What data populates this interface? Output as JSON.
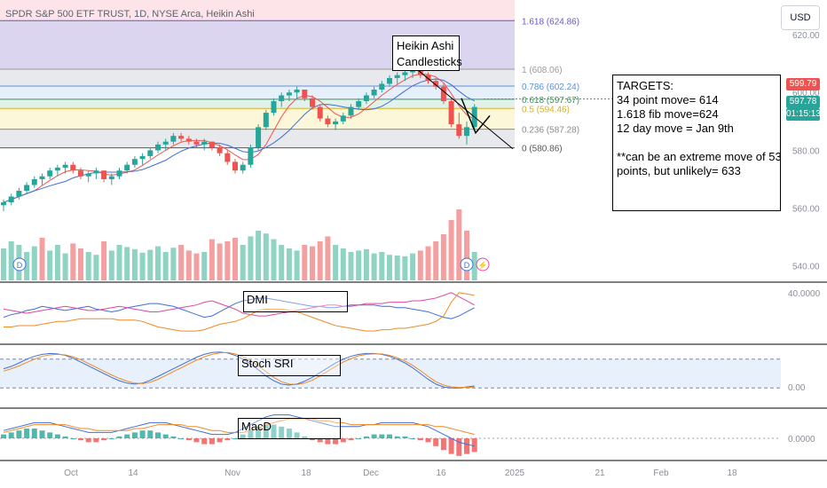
{
  "header": {
    "symbol_title": "SPDR S&P 500 ETF TRUST, 1D, NYSE Arca, Heikin Ashi",
    "currency_button": "USD"
  },
  "annotations": {
    "heikin_ashi_box": [
      "Heikin Ashi",
      "Candlesticks"
    ],
    "targets_box": [
      "TARGETS:",
      "",
      "34 point move= 614",
      "1.618 fib move=624",
      "12 day move = Jan 9th",
      "",
      "**can be an extreme move of 53",
      "points, but unlikely= 633"
    ],
    "dmi_box": "DMI",
    "stoch_box": "Stoch SRI",
    "macd_box": "MacD"
  },
  "price_tags": {
    "last_red": "599.79",
    "current": "597.78",
    "countdown": "01:15:13"
  },
  "colors": {
    "up": "#26a69a",
    "down": "#ef5350",
    "vol_up": "#8fd3c3",
    "vol_down": "#f5a0a0",
    "fib_1618_zone": "#dcd5f0",
    "fib_top_zone": "#fde4e9",
    "fib_grey_zone": "#e8e9ed",
    "fib_yellow_zone": "#fbf7d8",
    "fib_green_zone": "#e2f2ea",
    "dmi_plus": "#3f6fd8",
    "dmi_minus": "#e0479e",
    "adx": "#f08a24",
    "stoch_k": "#3f6fd8",
    "stoch_d": "#f08a24"
  },
  "chart_data": [
    {
      "type": "candlestick",
      "title": "SPDR S&P 500 ETF TRUST, 1D, NYSE Arca, Heikin Ashi",
      "x_ticks": [
        "Oct",
        "14",
        "Nov",
        "18",
        "Dec",
        "16",
        "2025",
        "21",
        "Feb",
        "18"
      ],
      "y_ticks": [
        "620.00",
        "600.00",
        "580.00",
        "560.00",
        "540.00"
      ],
      "ylim": [
        535,
        632
      ],
      "fib_levels": [
        {
          "label": "1.618 (624.86)",
          "value": 624.86
        },
        {
          "label": "1 (608.06)",
          "value": 608.06
        },
        {
          "label": "0.786 (602.24)",
          "value": 602.24
        },
        {
          "label": "0.618 (597.67)",
          "value": 597.67
        },
        {
          "label": "0.5 (594.46)",
          "value": 594.46
        },
        {
          "label": "0.236 (587.28)",
          "value": 587.28
        },
        {
          "label": "0 (580.86)",
          "value": 580.86
        }
      ],
      "candles": [
        [
          561,
          563,
          559,
          562
        ],
        [
          562,
          565,
          561,
          564
        ],
        [
          564,
          567,
          563,
          566
        ],
        [
          566,
          569,
          565,
          568
        ],
        [
          568,
          571,
          567,
          570
        ],
        [
          570,
          572,
          568,
          571
        ],
        [
          571,
          574,
          570,
          573
        ],
        [
          573,
          575,
          571,
          574
        ],
        [
          574,
          576,
          572,
          575
        ],
        [
          575,
          576,
          572,
          573
        ],
        [
          573,
          574,
          570,
          571
        ],
        [
          571,
          573,
          569,
          572
        ],
        [
          572,
          574,
          570,
          573
        ],
        [
          573,
          573,
          569,
          570
        ],
        [
          570,
          572,
          568,
          571
        ],
        [
          571,
          574,
          570,
          573
        ],
        [
          573,
          576,
          572,
          575
        ],
        [
          575,
          578,
          574,
          577
        ],
        [
          577,
          579,
          575,
          578
        ],
        [
          578,
          581,
          577,
          580
        ],
        [
          580,
          583,
          579,
          582
        ],
        [
          582,
          584,
          580,
          583
        ],
        [
          583,
          586,
          582,
          585
        ],
        [
          585,
          586,
          583,
          584
        ],
        [
          584,
          585,
          582,
          583
        ],
        [
          583,
          584,
          581,
          582
        ],
        [
          582,
          584,
          580,
          583
        ],
        [
          583,
          583,
          580,
          581
        ],
        [
          581,
          582,
          578,
          579
        ],
        [
          579,
          580,
          575,
          576
        ],
        [
          576,
          577,
          572,
          573
        ],
        [
          573,
          576,
          572,
          575
        ],
        [
          575,
          582,
          574,
          581
        ],
        [
          581,
          589,
          580,
          588
        ],
        [
          588,
          594,
          587,
          593
        ],
        [
          593,
          598,
          592,
          597
        ],
        [
          597,
          600,
          595,
          599
        ],
        [
          599,
          601,
          597,
          600
        ],
        [
          600,
          602,
          598,
          601
        ],
        [
          601,
          601,
          597,
          598
        ],
        [
          598,
          599,
          594,
          595
        ],
        [
          595,
          596,
          590,
          591
        ],
        [
          591,
          592,
          588,
          589
        ],
        [
          589,
          591,
          587,
          590
        ],
        [
          590,
          593,
          589,
          592
        ],
        [
          592,
          596,
          591,
          595
        ],
        [
          595,
          598,
          594,
          597
        ],
        [
          597,
          600,
          596,
          599
        ],
        [
          599,
          602,
          598,
          601
        ],
        [
          601,
          604,
          600,
          603
        ],
        [
          603,
          606,
          602,
          605
        ],
        [
          605,
          607,
          603,
          606
        ],
        [
          606,
          608,
          604,
          607
        ],
        [
          607,
          609,
          605,
          608
        ],
        [
          608,
          609,
          605,
          606
        ],
        [
          606,
          607,
          603,
          604
        ],
        [
          604,
          605,
          601,
          602
        ],
        [
          602,
          603,
          596,
          597
        ],
        [
          597,
          598,
          588,
          589
        ],
        [
          589,
          593,
          584,
          585
        ],
        [
          585,
          590,
          582,
          588
        ],
        [
          588,
          596,
          587,
          595
        ]
      ],
      "volume": [
        [
          0.45,
          "up"
        ],
        [
          0.55,
          "up"
        ],
        [
          0.5,
          "up"
        ],
        [
          0.4,
          "up"
        ],
        [
          0.48,
          "up"
        ],
        [
          0.6,
          "down"
        ],
        [
          0.42,
          "up"
        ],
        [
          0.5,
          "up"
        ],
        [
          0.38,
          "up"
        ],
        [
          0.52,
          "down"
        ],
        [
          0.45,
          "down"
        ],
        [
          0.4,
          "up"
        ],
        [
          0.36,
          "up"
        ],
        [
          0.55,
          "down"
        ],
        [
          0.42,
          "up"
        ],
        [
          0.5,
          "up"
        ],
        [
          0.47,
          "up"
        ],
        [
          0.44,
          "up"
        ],
        [
          0.39,
          "up"
        ],
        [
          0.43,
          "up"
        ],
        [
          0.48,
          "up"
        ],
        [
          0.4,
          "up"
        ],
        [
          0.46,
          "up"
        ],
        [
          0.5,
          "down"
        ],
        [
          0.42,
          "down"
        ],
        [
          0.38,
          "down"
        ],
        [
          0.4,
          "up"
        ],
        [
          0.58,
          "down"
        ],
        [
          0.52,
          "down"
        ],
        [
          0.55,
          "down"
        ],
        [
          0.6,
          "down"
        ],
        [
          0.5,
          "up"
        ],
        [
          0.62,
          "up"
        ],
        [
          0.7,
          "up"
        ],
        [
          0.66,
          "up"
        ],
        [
          0.58,
          "up"
        ],
        [
          0.5,
          "up"
        ],
        [
          0.45,
          "up"
        ],
        [
          0.42,
          "up"
        ],
        [
          0.5,
          "down"
        ],
        [
          0.48,
          "down"
        ],
        [
          0.55,
          "down"
        ],
        [
          0.62,
          "down"
        ],
        [
          0.5,
          "up"
        ],
        [
          0.45,
          "up"
        ],
        [
          0.4,
          "up"
        ],
        [
          0.42,
          "up"
        ],
        [
          0.44,
          "up"
        ],
        [
          0.38,
          "up"
        ],
        [
          0.4,
          "up"
        ],
        [
          0.36,
          "up"
        ],
        [
          0.35,
          "up"
        ],
        [
          0.34,
          "up"
        ],
        [
          0.38,
          "up"
        ],
        [
          0.42,
          "down"
        ],
        [
          0.48,
          "down"
        ],
        [
          0.55,
          "down"
        ],
        [
          0.65,
          "down"
        ],
        [
          0.85,
          "down"
        ],
        [
          1.0,
          "down"
        ],
        [
          0.7,
          "down"
        ],
        [
          0.4,
          "up"
        ]
      ]
    },
    {
      "type": "line",
      "title": "DMI",
      "y_ticks": [
        "40.0000"
      ],
      "series": [
        {
          "values": [
            22,
            24,
            25,
            27,
            28,
            30,
            29,
            28,
            27,
            28,
            29,
            30,
            28,
            27,
            26,
            27,
            29,
            30,
            31,
            32,
            32,
            31,
            30,
            28,
            26,
            24,
            22,
            23,
            26,
            29,
            32,
            34,
            35,
            36,
            36,
            35,
            34,
            33,
            32,
            31,
            30,
            30,
            29,
            29,
            30,
            31,
            31,
            31,
            31,
            30,
            30,
            29,
            29,
            28,
            27,
            26,
            24,
            22,
            21,
            23,
            26,
            29
          ]
        },
        {
          "values": [
            28,
            27,
            26,
            25,
            26,
            27,
            28,
            29,
            30,
            29,
            28,
            27,
            27,
            28,
            29,
            30,
            29,
            28,
            27,
            26,
            26,
            27,
            28,
            29,
            30,
            31,
            33,
            34,
            32,
            30,
            28,
            25,
            24,
            23,
            23,
            24,
            25,
            26,
            27,
            28,
            29,
            30,
            31,
            31,
            30,
            30,
            31,
            32,
            32,
            32,
            33,
            33,
            33,
            34,
            34,
            35,
            36,
            38,
            40,
            37,
            34,
            31
          ]
        },
        {
          "values": [
            15,
            15,
            16,
            16,
            16,
            17,
            18,
            19,
            19,
            20,
            21,
            21,
            21,
            21,
            21,
            20,
            20,
            20,
            19,
            17,
            15,
            14,
            13,
            12,
            12,
            12,
            13,
            15,
            17,
            18,
            19,
            21,
            24,
            27,
            28,
            28,
            28,
            27,
            26,
            24,
            22,
            20,
            18,
            16,
            15,
            14,
            13,
            12,
            12,
            13,
            13,
            14,
            14,
            15,
            16,
            17,
            19,
            23,
            33,
            40,
            39,
            38
          ]
        }
      ]
    },
    {
      "type": "line",
      "title": "Stoch SRI",
      "y_ticks": [
        "0.00"
      ],
      "series": [
        {
          "values": [
            60,
            65,
            72,
            80,
            86,
            90,
            92,
            91,
            88,
            82,
            74,
            66,
            58,
            50,
            42,
            35,
            30,
            28,
            30,
            36,
            44,
            52,
            60,
            68,
            76,
            84,
            90,
            94,
            95,
            93,
            88,
            80,
            70,
            58,
            45,
            35,
            28,
            26,
            28,
            34,
            42,
            52,
            62,
            72,
            80,
            86,
            90,
            92,
            92,
            90,
            86,
            80,
            72,
            62,
            50,
            38,
            28,
            22,
            20,
            20,
            22,
            24
          ]
        },
        {
          "values": [
            55,
            60,
            66,
            73,
            80,
            86,
            89,
            90,
            89,
            85,
            79,
            71,
            63,
            55,
            47,
            40,
            34,
            30,
            29,
            32,
            38,
            46,
            54,
            62,
            70,
            78,
            85,
            90,
            93,
            94,
            91,
            85,
            77,
            66,
            54,
            42,
            33,
            28,
            27,
            30,
            36,
            45,
            55,
            65,
            74,
            81,
            87,
            90,
            91,
            91,
            88,
            83,
            76,
            67,
            56,
            44,
            33,
            26,
            22,
            21,
            21,
            22
          ]
        }
      ]
    },
    {
      "type": "bar",
      "title": "MacD",
      "y_ticks": [
        "0.0000"
      ],
      "histogram": [
        2,
        3,
        4,
        5,
        5,
        4,
        3,
        2,
        1,
        0,
        -1,
        -2,
        -2,
        -1,
        0,
        1,
        2,
        3,
        4,
        4,
        3,
        2,
        1,
        0,
        -1,
        -2,
        -3,
        -3,
        -2,
        -1,
        0,
        2,
        4,
        6,
        7,
        7,
        6,
        5,
        3,
        1,
        -1,
        -2,
        -3,
        -3,
        -2,
        -1,
        0,
        1,
        2,
        2,
        2,
        1,
        1,
        0,
        -1,
        -2,
        -4,
        -6,
        -8,
        -9,
        -8,
        -7
      ],
      "series": [
        {
          "values": [
            4,
            5,
            6,
            7,
            8,
            8,
            8,
            7,
            6,
            5,
            4,
            3,
            3,
            3,
            3,
            4,
            5,
            6,
            7,
            8,
            8,
            8,
            7,
            6,
            5,
            4,
            3,
            2,
            2,
            2,
            3,
            5,
            7,
            9,
            11,
            12,
            12,
            12,
            11,
            10,
            9,
            8,
            7,
            6,
            6,
            6,
            6,
            7,
            7,
            8,
            8,
            8,
            8,
            8,
            7,
            6,
            4,
            2,
            0,
            -2,
            -3,
            -4
          ]
        },
        {
          "values": [
            3,
            4,
            5,
            6,
            7,
            7,
            7,
            7,
            7,
            6,
            5,
            5,
            4,
            4,
            4,
            4,
            4,
            5,
            5,
            6,
            7,
            7,
            7,
            7,
            6,
            6,
            5,
            4,
            4,
            3,
            3,
            3,
            4,
            5,
            7,
            8,
            9,
            10,
            10,
            10,
            10,
            9,
            9,
            8,
            8,
            7,
            7,
            7,
            7,
            7,
            7,
            7,
            7,
            7,
            7,
            7,
            6,
            6,
            5,
            4,
            3,
            2
          ]
        }
      ]
    }
  ]
}
